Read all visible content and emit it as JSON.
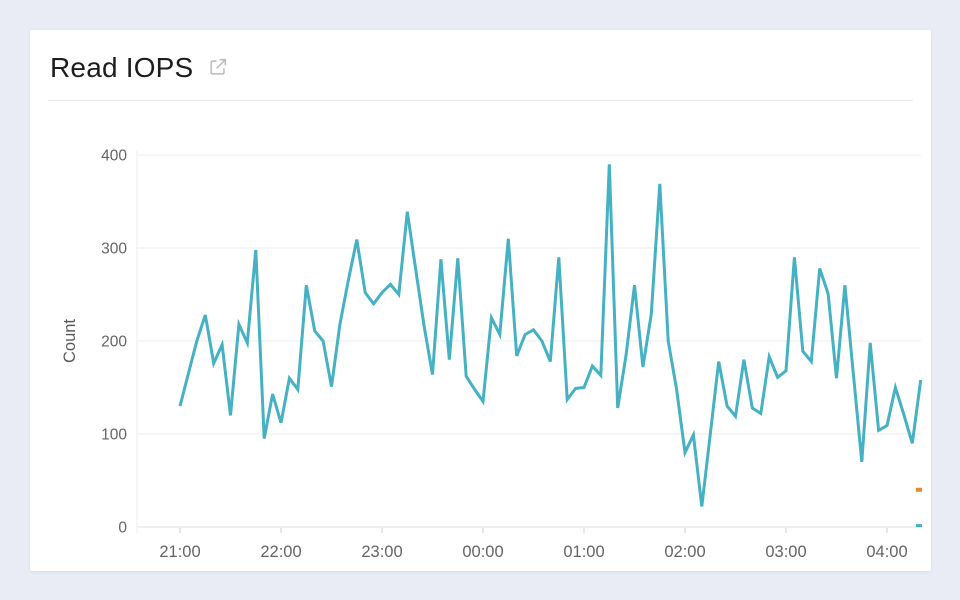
{
  "page": {
    "background_color": "#e9ecf4"
  },
  "panel": {
    "title": "Read IOPS",
    "title_icon": "external-link-icon"
  },
  "chart_data": {
    "type": "line",
    "title": "Read IOPS",
    "xlabel": "",
    "ylabel": "Count",
    "grid": true,
    "legend": false,
    "x_axis": {
      "tick_labels": [
        "21:00",
        "22:00",
        "23:00",
        "00:00",
        "01:00",
        "02:00",
        "03:00",
        "04:00"
      ],
      "start_time": "21:00",
      "end_time": "04:20",
      "point_interval_minutes": 5
    },
    "y_axis": {
      "ticks": [
        0,
        100,
        200,
        300,
        400
      ],
      "range": [
        0,
        400
      ]
    },
    "series": [
      {
        "name": "Read IOPS",
        "color": "#45b1c3",
        "values": [
          130,
          165,
          200,
          228,
          176,
          196,
          120,
          218,
          198,
          298,
          95,
          143,
          112,
          160,
          148,
          260,
          211,
          200,
          151,
          218,
          265,
          309,
          252,
          240,
          252,
          261,
          250,
          339,
          277,
          216,
          164,
          288,
          180,
          289,
          162,
          148,
          135,
          225,
          207,
          310,
          184,
          207,
          212,
          200,
          178,
          290,
          137,
          149,
          150,
          173,
          163,
          390,
          128,
          185,
          260,
          172,
          229,
          369,
          200,
          148,
          80,
          99,
          22,
          100,
          178,
          130,
          119,
          180,
          128,
          122,
          183,
          161,
          168,
          290,
          189,
          178,
          278,
          251,
          160,
          260,
          165,
          70,
          198,
          104,
          109,
          150,
          121,
          90,
          158
        ]
      }
    ],
    "markers": [
      {
        "name": "secondary-series-start-marker",
        "color": "#e78a2e",
        "value": 40,
        "position": "right-edge"
      },
      {
        "name": "series-end-marker",
        "color": "#45b1c3",
        "value": 1,
        "position": "right-edge"
      }
    ]
  },
  "colors": {
    "line": "#45b1c3",
    "grid_line": "#ededed",
    "axis_line": "#dcdcdc",
    "tick_mark": "#cccccc",
    "tick_label": "#646464",
    "axis_title": "#5a5a5a",
    "title_text": "#1d1d20",
    "divider": "#e8e8e8",
    "icon": "#bcbcbc",
    "panel_bg": "#ffffff",
    "page_bg": "#e9ecf4"
  }
}
